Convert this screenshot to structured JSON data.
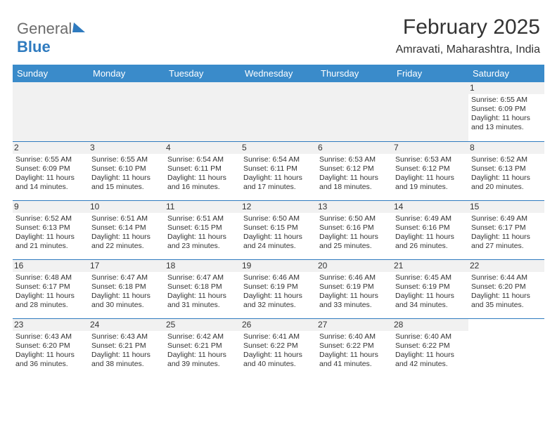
{
  "logo": {
    "text_a": "General",
    "text_b": "Blue"
  },
  "title": "February 2025",
  "location": "Amravati, Maharashtra, India",
  "colors": {
    "header_bg": "#3a8bca",
    "border": "#2f7bbf",
    "stripe": "#f1f1f1",
    "text": "#333333",
    "logo_grey": "#6c6c6c"
  },
  "weekdays": [
    "Sunday",
    "Monday",
    "Tuesday",
    "Wednesday",
    "Thursday",
    "Friday",
    "Saturday"
  ],
  "weeks": [
    [
      null,
      null,
      null,
      null,
      null,
      null,
      {
        "n": "1",
        "rise": "6:55 AM",
        "set": "6:09 PM",
        "dl": "11 hours and 13 minutes."
      }
    ],
    [
      {
        "n": "2",
        "rise": "6:55 AM",
        "set": "6:09 PM",
        "dl": "11 hours and 14 minutes."
      },
      {
        "n": "3",
        "rise": "6:55 AM",
        "set": "6:10 PM",
        "dl": "11 hours and 15 minutes."
      },
      {
        "n": "4",
        "rise": "6:54 AM",
        "set": "6:11 PM",
        "dl": "11 hours and 16 minutes."
      },
      {
        "n": "5",
        "rise": "6:54 AM",
        "set": "6:11 PM",
        "dl": "11 hours and 17 minutes."
      },
      {
        "n": "6",
        "rise": "6:53 AM",
        "set": "6:12 PM",
        "dl": "11 hours and 18 minutes."
      },
      {
        "n": "7",
        "rise": "6:53 AM",
        "set": "6:12 PM",
        "dl": "11 hours and 19 minutes."
      },
      {
        "n": "8",
        "rise": "6:52 AM",
        "set": "6:13 PM",
        "dl": "11 hours and 20 minutes."
      }
    ],
    [
      {
        "n": "9",
        "rise": "6:52 AM",
        "set": "6:13 PM",
        "dl": "11 hours and 21 minutes."
      },
      {
        "n": "10",
        "rise": "6:51 AM",
        "set": "6:14 PM",
        "dl": "11 hours and 22 minutes."
      },
      {
        "n": "11",
        "rise": "6:51 AM",
        "set": "6:15 PM",
        "dl": "11 hours and 23 minutes."
      },
      {
        "n": "12",
        "rise": "6:50 AM",
        "set": "6:15 PM",
        "dl": "11 hours and 24 minutes."
      },
      {
        "n": "13",
        "rise": "6:50 AM",
        "set": "6:16 PM",
        "dl": "11 hours and 25 minutes."
      },
      {
        "n": "14",
        "rise": "6:49 AM",
        "set": "6:16 PM",
        "dl": "11 hours and 26 minutes."
      },
      {
        "n": "15",
        "rise": "6:49 AM",
        "set": "6:17 PM",
        "dl": "11 hours and 27 minutes."
      }
    ],
    [
      {
        "n": "16",
        "rise": "6:48 AM",
        "set": "6:17 PM",
        "dl": "11 hours and 28 minutes."
      },
      {
        "n": "17",
        "rise": "6:47 AM",
        "set": "6:18 PM",
        "dl": "11 hours and 30 minutes."
      },
      {
        "n": "18",
        "rise": "6:47 AM",
        "set": "6:18 PM",
        "dl": "11 hours and 31 minutes."
      },
      {
        "n": "19",
        "rise": "6:46 AM",
        "set": "6:19 PM",
        "dl": "11 hours and 32 minutes."
      },
      {
        "n": "20",
        "rise": "6:46 AM",
        "set": "6:19 PM",
        "dl": "11 hours and 33 minutes."
      },
      {
        "n": "21",
        "rise": "6:45 AM",
        "set": "6:19 PM",
        "dl": "11 hours and 34 minutes."
      },
      {
        "n": "22",
        "rise": "6:44 AM",
        "set": "6:20 PM",
        "dl": "11 hours and 35 minutes."
      }
    ],
    [
      {
        "n": "23",
        "rise": "6:43 AM",
        "set": "6:20 PM",
        "dl": "11 hours and 36 minutes."
      },
      {
        "n": "24",
        "rise": "6:43 AM",
        "set": "6:21 PM",
        "dl": "11 hours and 38 minutes."
      },
      {
        "n": "25",
        "rise": "6:42 AM",
        "set": "6:21 PM",
        "dl": "11 hours and 39 minutes."
      },
      {
        "n": "26",
        "rise": "6:41 AM",
        "set": "6:22 PM",
        "dl": "11 hours and 40 minutes."
      },
      {
        "n": "27",
        "rise": "6:40 AM",
        "set": "6:22 PM",
        "dl": "11 hours and 41 minutes."
      },
      {
        "n": "28",
        "rise": "6:40 AM",
        "set": "6:22 PM",
        "dl": "11 hours and 42 minutes."
      },
      null
    ]
  ],
  "labels": {
    "sunrise": "Sunrise:",
    "sunset": "Sunset:",
    "daylight": "Daylight:"
  }
}
